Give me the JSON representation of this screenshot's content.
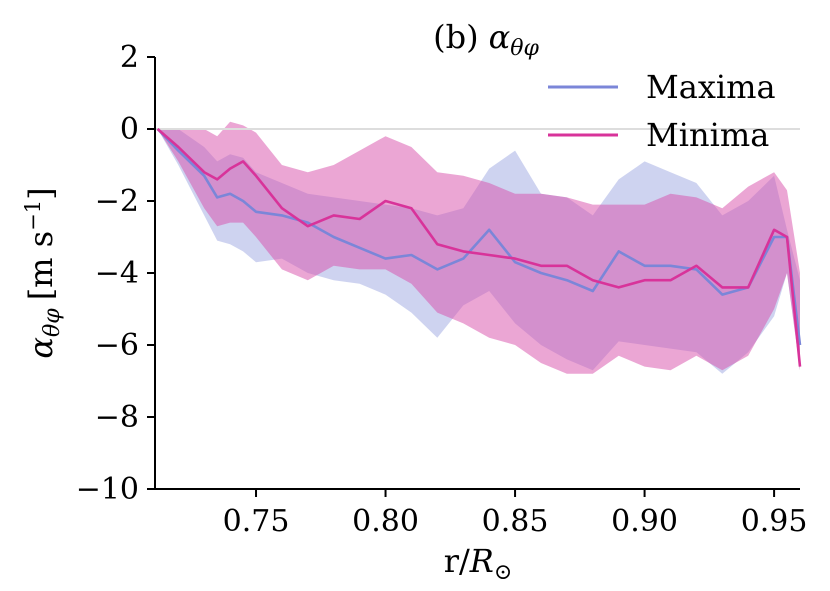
{
  "chart_data": {
    "type": "line",
    "title": "(b) αθφ",
    "title_prefix": "(b)",
    "title_symbol": "α",
    "title_subscript": "θφ",
    "xlabel": "r/R⊙",
    "xlabel_prefix": "r/",
    "xlabel_main": "R",
    "xlabel_sub": "⊙",
    "ylabel": "αθφ [m s−1]",
    "ylabel_symbol": "α",
    "ylabel_subscript": "θφ",
    "ylabel_units": "[m s",
    "ylabel_exponent": "−1",
    "ylabel_close": "]",
    "xlim": [
      0.711,
      0.96
    ],
    "ylim": [
      -10,
      2
    ],
    "xticks": [
      0.75,
      0.8,
      0.85,
      0.9,
      0.95
    ],
    "xtick_labels": [
      "0.75",
      "0.80",
      "0.85",
      "0.90",
      "0.95"
    ],
    "yticks": [
      2,
      0,
      -2,
      -4,
      -6,
      -8,
      -10
    ],
    "ytick_labels": [
      "2",
      "0",
      "−2",
      "−4",
      "−6",
      "−8",
      "−10"
    ],
    "zero_line": true,
    "legend_position": "top-right",
    "x": [
      0.712,
      0.72,
      0.73,
      0.735,
      0.74,
      0.745,
      0.75,
      0.76,
      0.77,
      0.78,
      0.79,
      0.8,
      0.81,
      0.82,
      0.83,
      0.84,
      0.85,
      0.86,
      0.87,
      0.88,
      0.89,
      0.9,
      0.91,
      0.92,
      0.93,
      0.94,
      0.95,
      0.955,
      0.96
    ],
    "series": [
      {
        "name": "Maxima",
        "color": "#7b86d8",
        "band_color": "#8a96dc",
        "values": [
          0.0,
          -0.6,
          -1.3,
          -1.9,
          -1.8,
          -2.0,
          -2.3,
          -2.4,
          -2.6,
          -3.0,
          -3.3,
          -3.6,
          -3.5,
          -3.9,
          -3.6,
          -2.8,
          -3.7,
          -4.0,
          -4.2,
          -4.5,
          -3.4,
          -3.8,
          -3.8,
          -3.9,
          -4.6,
          -4.4,
          -3.0,
          -3.0,
          -6.0
        ],
        "upper": [
          0.0,
          0.0,
          -0.5,
          -0.9,
          -0.7,
          -0.8,
          -1.2,
          -1.5,
          -1.8,
          -1.9,
          -2.0,
          -2.1,
          -2.2,
          -2.4,
          -2.2,
          -1.1,
          -0.6,
          -1.8,
          -1.9,
          -2.4,
          -1.4,
          -0.9,
          -1.2,
          -1.5,
          -2.4,
          -2.0,
          -1.3,
          -2.8,
          -4.2
        ],
        "lower": [
          0.0,
          -1.0,
          -2.4,
          -3.1,
          -3.2,
          -3.4,
          -3.7,
          -3.6,
          -4.0,
          -4.2,
          -4.3,
          -4.6,
          -5.1,
          -5.8,
          -4.9,
          -4.5,
          -5.4,
          -6.0,
          -6.4,
          -6.7,
          -5.9,
          -6.0,
          -6.1,
          -6.2,
          -6.8,
          -6.2,
          -5.2,
          -4.0,
          -6.7
        ]
      },
      {
        "name": "Minima",
        "color": "#d8339a",
        "band_color": "#d84eaa",
        "values": [
          0.0,
          -0.5,
          -1.2,
          -1.4,
          -1.1,
          -0.9,
          -1.3,
          -2.2,
          -2.7,
          -2.4,
          -2.5,
          -2.0,
          -2.2,
          -3.2,
          -3.4,
          -3.5,
          -3.6,
          -3.8,
          -3.8,
          -4.2,
          -4.4,
          -4.2,
          -4.2,
          -3.8,
          -4.4,
          -4.4,
          -2.8,
          -3.0,
          -6.6
        ],
        "upper": [
          0.0,
          0.0,
          0.0,
          -0.2,
          0.2,
          0.1,
          -0.1,
          -1.0,
          -1.2,
          -1.0,
          -0.6,
          -0.2,
          -0.5,
          -1.2,
          -1.3,
          -1.5,
          -1.8,
          -1.8,
          -1.9,
          -2.1,
          -2.1,
          -2.1,
          -1.8,
          -1.9,
          -2.2,
          -1.6,
          -1.2,
          -1.7,
          -4.0
        ],
        "lower": [
          0.0,
          -0.9,
          -2.2,
          -2.7,
          -2.6,
          -2.6,
          -3.0,
          -3.9,
          -4.2,
          -3.8,
          -3.9,
          -3.9,
          -4.3,
          -5.1,
          -5.4,
          -5.8,
          -6.0,
          -6.5,
          -6.8,
          -6.8,
          -6.3,
          -6.6,
          -6.7,
          -6.3,
          -6.7,
          -6.3,
          -5.0,
          -4.0,
          -6.7
        ]
      }
    ]
  }
}
